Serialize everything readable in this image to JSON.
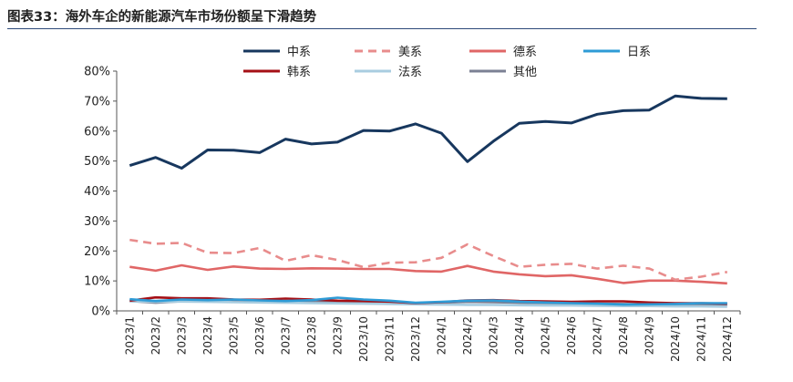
{
  "figure": {
    "label": "图表33：",
    "title": "海外车企的新能源汽车市场份额呈下滑趋势"
  },
  "colors": {
    "中系": "#17375e",
    "美系": "#e88c8c",
    "德系": "#e06666",
    "日系": "#2e9bd6",
    "韩系": "#a50f15",
    "法系": "#a9cde0",
    "其他": "#7b8094"
  },
  "chart_data": {
    "type": "line",
    "title": "海外车企的新能源汽车市场份额呈下滑趋势",
    "xlabel": "",
    "ylabel": "",
    "ylim": [
      0,
      0.8
    ],
    "yticks": [
      0,
      0.1,
      0.2,
      0.3,
      0.4,
      0.5,
      0.6,
      0.7,
      0.8
    ],
    "ytick_labels": [
      "0%",
      "10%",
      "20%",
      "30%",
      "40%",
      "50%",
      "60%",
      "70%",
      "80%"
    ],
    "categories": [
      "2023/1",
      "2023/2",
      "2023/3",
      "2023/4",
      "2023/5",
      "2023/6",
      "2023/7",
      "2023/8",
      "2023/9",
      "2023/10",
      "2023/11",
      "2023/12",
      "2024/1",
      "2024/2",
      "2024/3",
      "2024/4",
      "2024/5",
      "2024/6",
      "2024/7",
      "2024/8",
      "2024/9",
      "2024/10",
      "2024/11",
      "2024/12"
    ],
    "legend_position": "top",
    "series": [
      {
        "name": "中系",
        "style": "solid",
        "values": [
          0.485,
          0.512,
          0.476,
          0.537,
          0.536,
          0.528,
          0.573,
          0.557,
          0.563,
          0.602,
          0.6,
          0.624,
          0.593,
          0.498,
          0.566,
          0.626,
          0.632,
          0.627,
          0.656,
          0.668,
          0.67,
          0.717,
          0.709,
          0.708
        ]
      },
      {
        "name": "美系",
        "style": "dashed",
        "values": [
          0.237,
          0.224,
          0.227,
          0.194,
          0.193,
          0.21,
          0.167,
          0.186,
          0.17,
          0.146,
          0.161,
          0.162,
          0.177,
          0.222,
          0.183,
          0.147,
          0.154,
          0.157,
          0.141,
          0.151,
          0.141,
          0.104,
          0.114,
          0.13
        ]
      },
      {
        "name": "德系",
        "style": "solid",
        "values": [
          0.147,
          0.134,
          0.152,
          0.137,
          0.148,
          0.141,
          0.14,
          0.142,
          0.141,
          0.14,
          0.14,
          0.133,
          0.131,
          0.15,
          0.131,
          0.122,
          0.116,
          0.119,
          0.107,
          0.093,
          0.101,
          0.101,
          0.097,
          0.092
        ]
      },
      {
        "name": "日系",
        "style": "solid",
        "values": [
          0.039,
          0.033,
          0.038,
          0.036,
          0.038,
          0.035,
          0.033,
          0.036,
          0.044,
          0.038,
          0.034,
          0.027,
          0.03,
          0.034,
          0.035,
          0.031,
          0.028,
          0.026,
          0.024,
          0.021,
          0.022,
          0.023,
          0.026,
          0.026
        ]
      },
      {
        "name": "韩系",
        "style": "solid",
        "values": [
          0.034,
          0.045,
          0.042,
          0.042,
          0.038,
          0.037,
          0.041,
          0.038,
          0.034,
          0.033,
          0.031,
          0.026,
          0.029,
          0.035,
          0.036,
          0.033,
          0.032,
          0.03,
          0.032,
          0.032,
          0.028,
          0.026,
          0.026,
          0.024
        ]
      },
      {
        "name": "法系",
        "style": "solid",
        "values": [
          0.032,
          0.03,
          0.031,
          0.03,
          0.029,
          0.028,
          0.027,
          0.026,
          0.025,
          0.024,
          0.023,
          0.022,
          0.021,
          0.02,
          0.02,
          0.019,
          0.018,
          0.018,
          0.017,
          0.016,
          0.016,
          0.015,
          0.015,
          0.014
        ]
      },
      {
        "name": "其他",
        "style": "solid",
        "values": [
          0.033,
          0.027,
          0.032,
          0.034,
          0.031,
          0.03,
          0.032,
          0.031,
          0.03,
          0.028,
          0.027,
          0.026,
          0.027,
          0.03,
          0.029,
          0.027,
          0.026,
          0.025,
          0.024,
          0.023,
          0.022,
          0.021,
          0.021,
          0.02
        ]
      }
    ]
  }
}
